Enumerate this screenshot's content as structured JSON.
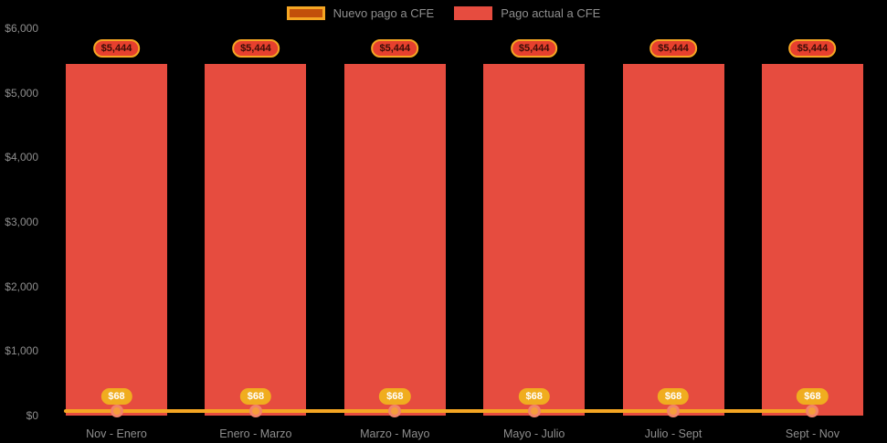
{
  "chart_data": {
    "type": "bar",
    "title": "",
    "xlabel": "",
    "ylabel": "",
    "categories": [
      "Nov - Enero",
      "Enero - Marzo",
      "Marzo - Mayo",
      "Mayo - Julio",
      "Julio - Sept",
      "Sept - Nov"
    ],
    "series": [
      {
        "name": "Nuevo pago a CFE",
        "type": "line",
        "color": "#f5a623",
        "values": [
          68,
          68,
          68,
          68,
          68,
          68
        ],
        "point_labels": [
          "$68",
          "$68",
          "$68",
          "$68",
          "$68",
          "$68"
        ]
      },
      {
        "name": "Pago actual a CFE",
        "type": "bar",
        "color": "#e64c3f",
        "values": [
          5444,
          5444,
          5444,
          5444,
          5444,
          5444
        ],
        "bar_labels": [
          "$5,444",
          "$5,444",
          "$5,444",
          "$5,444",
          "$5,444",
          "$5,444"
        ]
      }
    ],
    "ylim": [
      0,
      6000
    ],
    "yticks": [
      "$0",
      "$1,000",
      "$2,000",
      "$3,000",
      "$4,000",
      "$5,000",
      "$6,000"
    ],
    "grid": false,
    "legend_position": "top"
  },
  "colors": {
    "background": "#000000",
    "bar_red": "#e64c3f",
    "line_orange": "#f5a623",
    "badge_red": "#e7402e",
    "badge_red_text": "#3a0d07",
    "badge_gold": "#f0ad1f",
    "legend_nuevo_fill": "#c2500a",
    "marker_fill": "#f59d3c",
    "marker_ring": "#f28468",
    "axis_text": "#8e8e8e"
  }
}
